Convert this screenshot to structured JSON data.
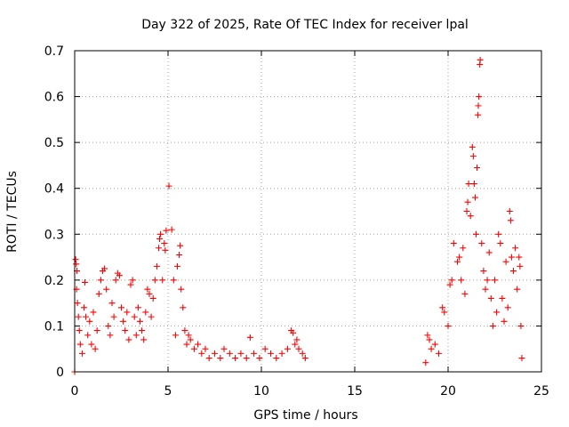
{
  "chart_data": {
    "type": "scatter",
    "title": "Day 322 of 2025, Rate Of TEC Index for receiver lpal",
    "xlabel": "GPS time / hours",
    "ylabel": "ROTI / TECUs",
    "xlim": [
      0,
      25
    ],
    "ylim": [
      0,
      0.7
    ],
    "xticks": [
      "0",
      "5",
      "10",
      "15",
      "20",
      "25"
    ],
    "yticks": [
      "0",
      "0.1",
      "0.2",
      "0.3",
      "0.4",
      "0.5",
      "0.6",
      "0.7"
    ],
    "grid": true,
    "legend": "none",
    "marker": "+",
    "series": [
      {
        "color": "#ff0000",
        "points": [
          [
            0.0,
            0.0
          ],
          [
            0.05,
            0.245
          ],
          [
            0.08,
            0.235
          ],
          [
            0.12,
            0.22
          ],
          [
            0.1,
            0.18
          ],
          [
            0.15,
            0.15
          ],
          [
            0.2,
            0.12
          ],
          [
            0.25,
            0.09
          ],
          [
            0.3,
            0.06
          ],
          [
            0.4,
            0.04
          ],
          [
            0.5,
            0.14
          ],
          [
            0.55,
            0.195
          ],
          [
            0.6,
            0.12
          ],
          [
            0.7,
            0.08
          ],
          [
            0.8,
            0.11
          ],
          [
            0.9,
            0.06
          ],
          [
            1.0,
            0.13
          ],
          [
            1.1,
            0.05
          ],
          [
            1.2,
            0.09
          ],
          [
            1.3,
            0.17
          ],
          [
            1.4,
            0.2
          ],
          [
            1.5,
            0.22
          ],
          [
            1.6,
            0.225
          ],
          [
            1.7,
            0.18
          ],
          [
            1.8,
            0.1
          ],
          [
            1.9,
            0.08
          ],
          [
            2.0,
            0.15
          ],
          [
            2.1,
            0.12
          ],
          [
            2.2,
            0.2
          ],
          [
            2.3,
            0.215
          ],
          [
            2.4,
            0.21
          ],
          [
            2.5,
            0.14
          ],
          [
            2.6,
            0.11
          ],
          [
            2.7,
            0.09
          ],
          [
            2.8,
            0.13
          ],
          [
            2.9,
            0.07
          ],
          [
            3.0,
            0.19
          ],
          [
            3.1,
            0.2
          ],
          [
            3.2,
            0.12
          ],
          [
            3.3,
            0.08
          ],
          [
            3.4,
            0.14
          ],
          [
            3.5,
            0.11
          ],
          [
            3.6,
            0.09
          ],
          [
            3.7,
            0.07
          ],
          [
            3.8,
            0.13
          ],
          [
            3.9,
            0.18
          ],
          [
            4.0,
            0.17
          ],
          [
            4.1,
            0.12
          ],
          [
            4.2,
            0.16
          ],
          [
            4.3,
            0.2
          ],
          [
            4.4,
            0.23
          ],
          [
            4.5,
            0.27
          ],
          [
            4.55,
            0.29
          ],
          [
            4.6,
            0.3
          ],
          [
            4.7,
            0.2
          ],
          [
            4.8,
            0.28
          ],
          [
            4.85,
            0.265
          ],
          [
            4.9,
            0.308
          ],
          [
            5.05,
            0.405
          ],
          [
            5.2,
            0.31
          ],
          [
            5.3,
            0.2
          ],
          [
            5.4,
            0.08
          ],
          [
            5.5,
            0.23
          ],
          [
            5.6,
            0.255
          ],
          [
            5.65,
            0.275
          ],
          [
            5.7,
            0.18
          ],
          [
            5.8,
            0.14
          ],
          [
            5.9,
            0.09
          ],
          [
            6.0,
            0.06
          ],
          [
            6.1,
            0.08
          ],
          [
            6.2,
            0.07
          ],
          [
            6.4,
            0.05
          ],
          [
            6.6,
            0.06
          ],
          [
            6.8,
            0.04
          ],
          [
            7.0,
            0.05
          ],
          [
            7.2,
            0.03
          ],
          [
            7.5,
            0.04
          ],
          [
            7.8,
            0.03
          ],
          [
            8.0,
            0.05
          ],
          [
            8.3,
            0.04
          ],
          [
            8.6,
            0.03
          ],
          [
            8.9,
            0.04
          ],
          [
            9.2,
            0.03
          ],
          [
            9.4,
            0.075
          ],
          [
            9.6,
            0.04
          ],
          [
            9.9,
            0.03
          ],
          [
            10.2,
            0.05
          ],
          [
            10.5,
            0.04
          ],
          [
            10.8,
            0.03
          ],
          [
            11.1,
            0.04
          ],
          [
            11.4,
            0.05
          ],
          [
            11.6,
            0.09
          ],
          [
            11.7,
            0.085
          ],
          [
            11.8,
            0.06
          ],
          [
            11.9,
            0.07
          ],
          [
            12.0,
            0.05
          ],
          [
            12.2,
            0.04
          ],
          [
            12.35,
            0.03
          ],
          [
            18.8,
            0.02
          ],
          [
            18.9,
            0.08
          ],
          [
            19.0,
            0.07
          ],
          [
            19.1,
            0.05
          ],
          [
            19.3,
            0.06
          ],
          [
            19.5,
            0.04
          ],
          [
            19.7,
            0.14
          ],
          [
            19.8,
            0.13
          ],
          [
            20.0,
            0.1
          ],
          [
            20.1,
            0.19
          ],
          [
            20.2,
            0.2
          ],
          [
            20.3,
            0.28
          ],
          [
            20.5,
            0.24
          ],
          [
            20.6,
            0.25
          ],
          [
            20.7,
            0.2
          ],
          [
            20.8,
            0.27
          ],
          [
            20.9,
            0.17
          ],
          [
            21.0,
            0.35
          ],
          [
            21.05,
            0.37
          ],
          [
            21.1,
            0.41
          ],
          [
            21.2,
            0.34
          ],
          [
            21.3,
            0.49
          ],
          [
            21.35,
            0.47
          ],
          [
            21.4,
            0.41
          ],
          [
            21.45,
            0.38
          ],
          [
            21.5,
            0.3
          ],
          [
            21.55,
            0.445
          ],
          [
            21.6,
            0.56
          ],
          [
            21.62,
            0.58
          ],
          [
            21.65,
            0.6
          ],
          [
            21.7,
            0.67
          ],
          [
            21.72,
            0.68
          ],
          [
            21.8,
            0.28
          ],
          [
            21.9,
            0.22
          ],
          [
            22.0,
            0.18
          ],
          [
            22.1,
            0.2
          ],
          [
            22.2,
            0.26
          ],
          [
            22.3,
            0.16
          ],
          [
            22.4,
            0.1
          ],
          [
            22.5,
            0.2
          ],
          [
            22.6,
            0.13
          ],
          [
            22.7,
            0.3
          ],
          [
            22.8,
            0.28
          ],
          [
            22.9,
            0.16
          ],
          [
            23.0,
            0.11
          ],
          [
            23.1,
            0.24
          ],
          [
            23.2,
            0.14
          ],
          [
            23.3,
            0.35
          ],
          [
            23.35,
            0.33
          ],
          [
            23.4,
            0.25
          ],
          [
            23.5,
            0.22
          ],
          [
            23.6,
            0.27
          ],
          [
            23.7,
            0.18
          ],
          [
            23.8,
            0.25
          ],
          [
            23.85,
            0.23
          ],
          [
            23.9,
            0.1
          ],
          [
            23.95,
            0.03
          ]
        ]
      }
    ]
  }
}
